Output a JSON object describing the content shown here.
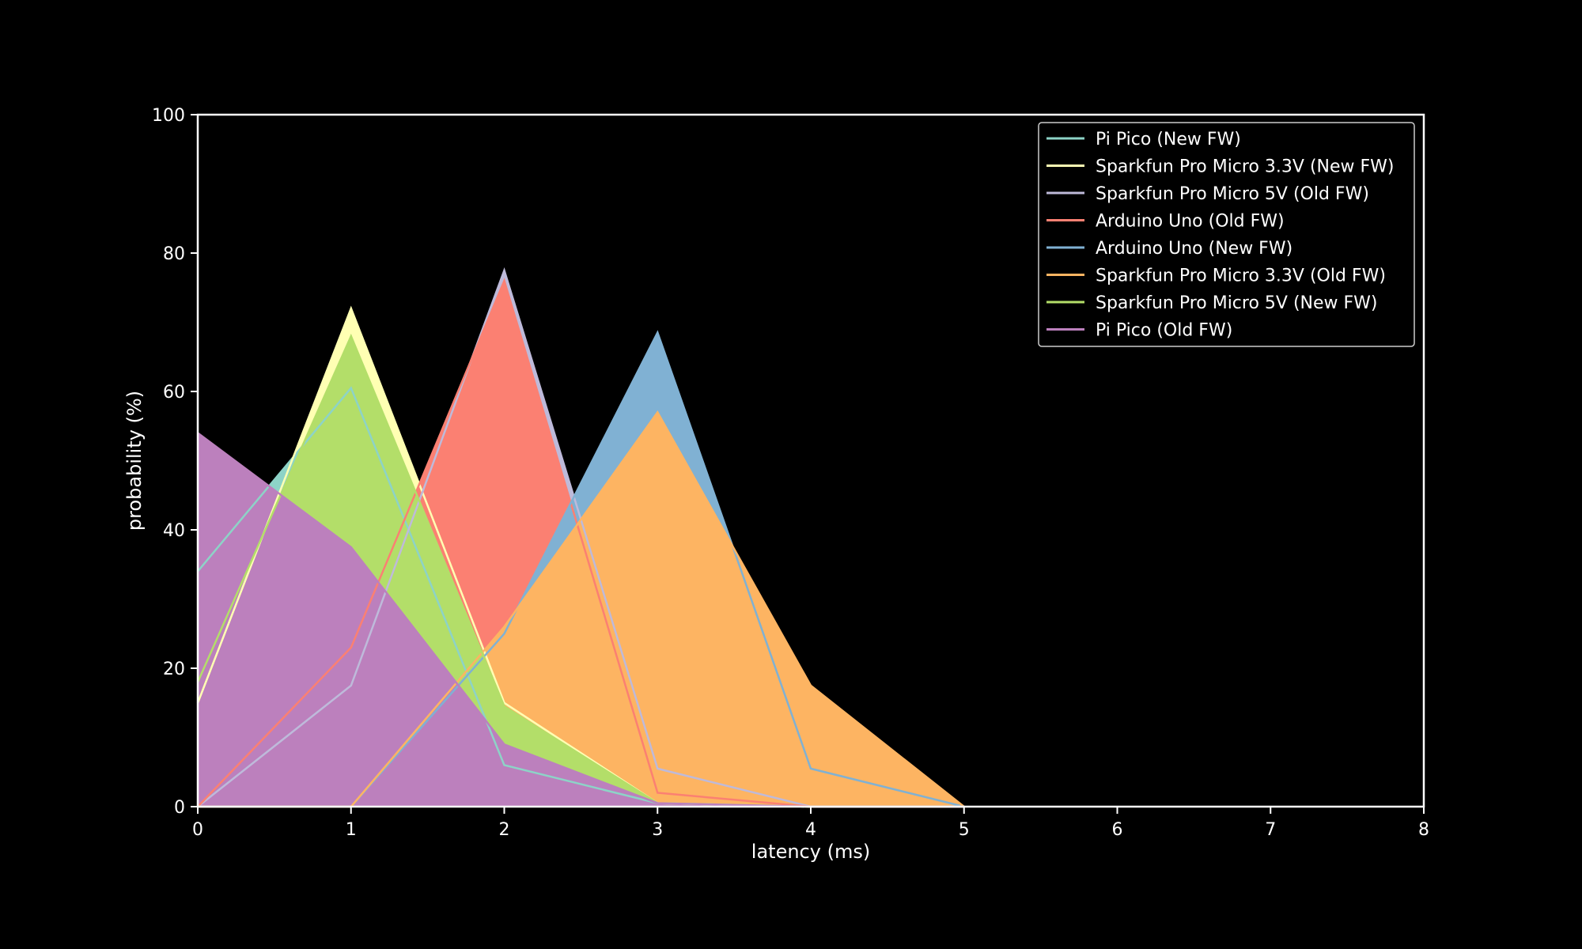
{
  "chart_data": {
    "type": "area",
    "title": "",
    "xlabel": "latency (ms)",
    "ylabel": "probability (%)",
    "xlim": [
      0,
      8
    ],
    "ylim": [
      0,
      100
    ],
    "x_ticks": [
      "0",
      "1",
      "2",
      "3",
      "4",
      "5",
      "6",
      "7",
      "8"
    ],
    "y_ticks": [
      "0",
      "20",
      "40",
      "60",
      "80",
      "100"
    ],
    "grid": false,
    "legend_position": "top-right",
    "background": "#000000",
    "x": [
      0,
      1,
      2,
      3,
      4,
      5
    ],
    "series": [
      {
        "name": "Pi Pico (New FW)",
        "color": "#8dd3c7",
        "values": [
          34,
          60.5,
          6,
          0.5,
          0,
          0
        ]
      },
      {
        "name": "Sparkfun Pro Micro 3.3V (New FW)",
        "color": "#ffffb3",
        "values": [
          15,
          72,
          15,
          0.5,
          0,
          0
        ]
      },
      {
        "name": "Sparkfun Pro Micro 5V (Old FW)",
        "color": "#bebada",
        "values": [
          0,
          17.5,
          77.5,
          5.5,
          0,
          0
        ]
      },
      {
        "name": "Arduino Uno (Old FW)",
        "color": "#fb8072",
        "values": [
          0,
          23,
          76,
          2,
          0,
          0
        ]
      },
      {
        "name": "Arduino Uno (New FW)",
        "color": "#80b1d3",
        "values": [
          0,
          0,
          25,
          68.5,
          5.5,
          0
        ]
      },
      {
        "name": "Sparkfun Pro Micro 3.3V (Old FW)",
        "color": "#fdb462",
        "values": [
          0,
          0,
          26,
          57,
          17.5,
          0
        ]
      },
      {
        "name": "Sparkfun Pro Micro 5V (New FW)",
        "color": "#b3de69",
        "values": [
          18,
          68,
          14.5,
          0.5,
          0,
          0
        ]
      },
      {
        "name": "Pi Pico (Old FW)",
        "color": "#bc80bd",
        "values": [
          54,
          37.5,
          9,
          0.5,
          0,
          0
        ]
      }
    ],
    "draw_order": [
      1,
      0,
      2,
      3,
      4,
      5,
      6,
      7
    ]
  }
}
